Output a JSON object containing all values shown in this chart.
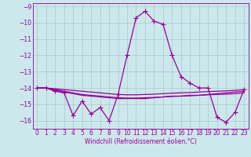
{
  "x": [
    0,
    1,
    2,
    3,
    4,
    5,
    6,
    7,
    8,
    9,
    10,
    11,
    12,
    13,
    14,
    15,
    16,
    17,
    18,
    19,
    20,
    21,
    22,
    23
  ],
  "windchill": [
    -14.0,
    -14.0,
    -14.2,
    -14.3,
    -15.7,
    -14.8,
    -15.6,
    -15.2,
    -16.0,
    -14.4,
    -12.0,
    -9.7,
    -9.3,
    -9.9,
    -10.1,
    -12.0,
    -13.3,
    -13.7,
    -14.0,
    -14.0,
    -15.8,
    -16.1,
    -15.5,
    -14.1
  ],
  "line2": [
    -14.0,
    -14.0,
    -14.15,
    -14.25,
    -14.35,
    -14.45,
    -14.5,
    -14.55,
    -14.6,
    -14.65,
    -14.65,
    -14.65,
    -14.65,
    -14.6,
    -14.55,
    -14.5,
    -14.5,
    -14.45,
    -14.45,
    -14.4,
    -14.35,
    -14.3,
    -14.25,
    -14.2
  ],
  "line3": [
    -14.0,
    -14.0,
    -14.1,
    -14.2,
    -14.3,
    -14.4,
    -14.45,
    -14.5,
    -14.55,
    -14.6,
    -14.62,
    -14.62,
    -14.6,
    -14.58,
    -14.55,
    -14.52,
    -14.5,
    -14.48,
    -14.45,
    -14.42,
    -14.4,
    -14.38,
    -14.35,
    -14.3
  ],
  "line4": [
    -14.0,
    -14.0,
    -14.05,
    -14.1,
    -14.15,
    -14.2,
    -14.25,
    -14.3,
    -14.35,
    -14.4,
    -14.42,
    -14.42,
    -14.4,
    -14.38,
    -14.35,
    -14.32,
    -14.3,
    -14.28,
    -14.25,
    -14.22,
    -14.2,
    -14.18,
    -14.15,
    -14.1
  ],
  "ylim": [
    -16.5,
    -8.8
  ],
  "xlim": [
    -0.5,
    23.5
  ],
  "yticks": [
    -16,
    -15,
    -14,
    -13,
    -12,
    -11,
    -10,
    -9
  ],
  "xticks": [
    0,
    1,
    2,
    3,
    4,
    5,
    6,
    7,
    8,
    9,
    10,
    11,
    12,
    13,
    14,
    15,
    16,
    17,
    18,
    19,
    20,
    21,
    22,
    23
  ],
  "xlabel": "Windchill (Refroidissement éolien,°C)",
  "line_color": "#990099",
  "bg_color": "#cce8ec",
  "grid_color": "#aac8cc",
  "marker": "+",
  "marker_size": 4,
  "linewidth": 0.9
}
